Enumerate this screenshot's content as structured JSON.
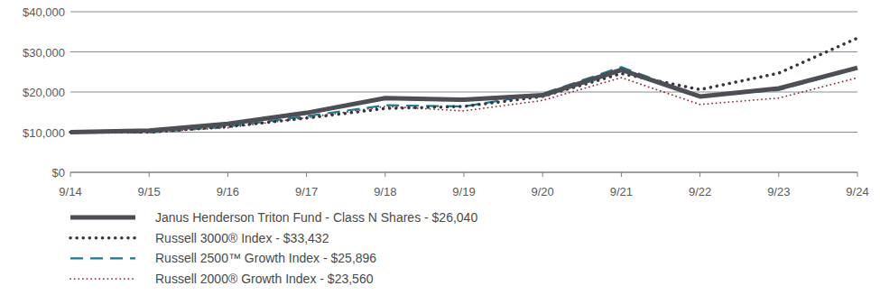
{
  "chart_data": {
    "type": "line",
    "categories": [
      "9/14",
      "9/15",
      "9/16",
      "9/17",
      "9/18",
      "9/19",
      "9/20",
      "9/21",
      "9/22",
      "9/23",
      "9/24"
    ],
    "ylim": [
      0,
      40000
    ],
    "yticks": [
      {
        "value": 0,
        "label": "$0"
      },
      {
        "value": 10000,
        "label": "$10,000"
      },
      {
        "value": 20000,
        "label": "$20,000"
      },
      {
        "value": 30000,
        "label": "$30,000"
      },
      {
        "value": 40000,
        "label": "$40,000"
      }
    ],
    "grid": true,
    "legend": "bottom",
    "series": [
      {
        "name": "Janus Henderson Triton Fund - Class N Shares - $26,040",
        "color": "#4d4f55",
        "line_style": "solid",
        "values": [
          10000,
          10400,
          12100,
          14800,
          18500,
          18100,
          19200,
          25500,
          18900,
          20900,
          26040
        ]
      },
      {
        "name": "Russell 3000® Index - $33,432",
        "color": "#33363d",
        "line_style": "dotted",
        "values": [
          10000,
          10000,
          11400,
          13500,
          15900,
          16400,
          18900,
          24600,
          20600,
          24700,
          33432
        ]
      },
      {
        "name": "Russell 2500™ Growth Index - $25,896",
        "color": "#1d7a8c",
        "line_style": "dashed",
        "values": [
          10000,
          9900,
          11400,
          14000,
          16700,
          16400,
          19600,
          26200,
          19000,
          20500,
          25896
        ]
      },
      {
        "name": "Russell 2000® Growth Index - $23,560",
        "color": "#8b2a3c",
        "line_style": "dotted",
        "values": [
          10000,
          10000,
          11100,
          13600,
          16400,
          15300,
          17900,
          23600,
          16900,
          18500,
          23560
        ]
      }
    ]
  }
}
